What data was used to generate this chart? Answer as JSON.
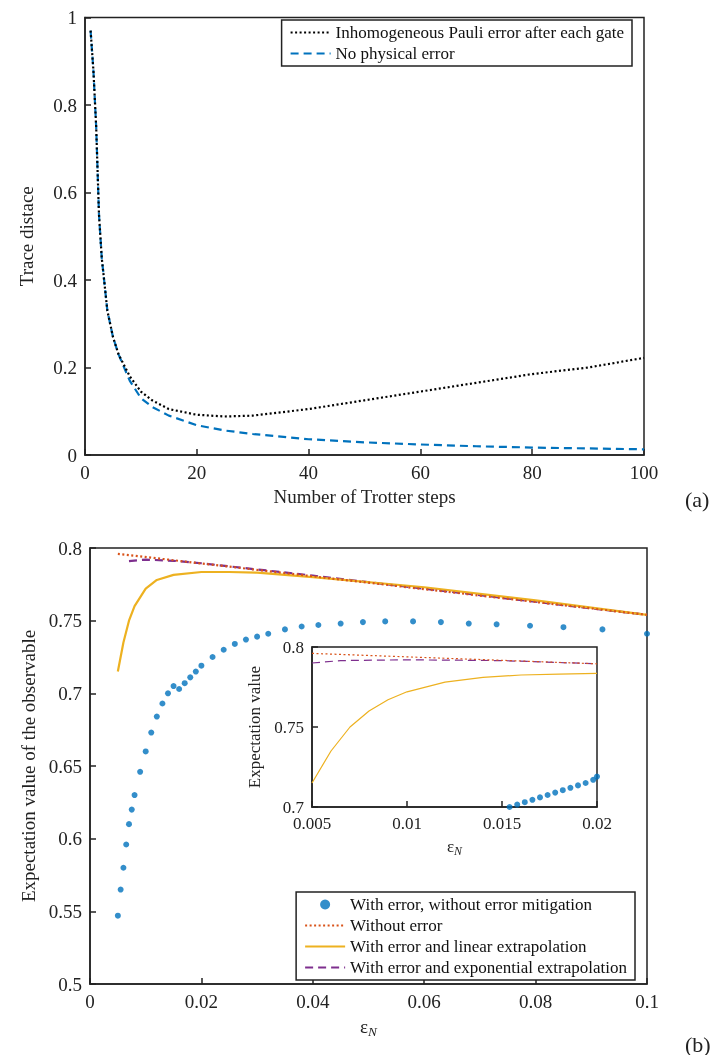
{
  "chart_data": [
    {
      "type": "line",
      "xlabel": "Number of Trotter steps",
      "ylabel": "Trace distace",
      "xlim": [
        0,
        100
      ],
      "ylim": [
        0,
        1
      ],
      "xticks": [
        0,
        20,
        40,
        60,
        80,
        100
      ],
      "yticks": [
        0,
        0.2,
        0.4,
        0.6,
        0.8,
        1
      ],
      "grid": false,
      "legend": "top right",
      "annotations": [
        "(a)"
      ],
      "series": [
        {
          "name": "Inhomogeneous Pauli error after each gate",
          "color": "#000000",
          "line_style": "dotted",
          "marker": "none",
          "x": [
            1,
            1.5,
            2,
            2.5,
            3,
            4,
            5,
            6,
            8,
            10,
            12,
            15,
            20,
            25,
            30,
            40,
            50,
            60,
            70,
            80,
            90,
            100
          ],
          "values": [
            0.97,
            0.88,
            0.75,
            0.55,
            0.45,
            0.33,
            0.27,
            0.23,
            0.18,
            0.145,
            0.125,
            0.105,
            0.092,
            0.088,
            0.09,
            0.105,
            0.125,
            0.145,
            0.165,
            0.185,
            0.2,
            0.222
          ]
        },
        {
          "name": "No physical error",
          "color": "#0072bd",
          "line_style": "dashed",
          "marker": "none",
          "x": [
            1,
            1.5,
            2,
            2.5,
            3,
            4,
            5,
            6,
            8,
            10,
            12,
            15,
            20,
            25,
            30,
            40,
            50,
            60,
            70,
            80,
            90,
            100
          ],
          "values": [
            0.97,
            0.88,
            0.75,
            0.55,
            0.45,
            0.33,
            0.27,
            0.23,
            0.17,
            0.13,
            0.11,
            0.09,
            0.068,
            0.056,
            0.048,
            0.036,
            0.029,
            0.024,
            0.02,
            0.017,
            0.015,
            0.013
          ]
        }
      ]
    },
    {
      "type": "line",
      "xlabel": "ε$_{N}$",
      "ylabel": "Expectation value of the observable",
      "xlim": [
        0,
        0.1
      ],
      "ylim": [
        0.5,
        0.8
      ],
      "xticks": [
        0,
        0.02,
        0.04,
        0.06,
        0.08,
        0.1
      ],
      "yticks": [
        0.5,
        0.55,
        0.6,
        0.65,
        0.7,
        0.75,
        0.8
      ],
      "grid": false,
      "legend": "bottom right",
      "annotations": [
        "(b)"
      ],
      "series": [
        {
          "name": "With error, without error mitigation",
          "type": "scatter",
          "color": "#0072bd",
          "marker": "circle",
          "x": [
            0.005,
            0.0055,
            0.006,
            0.0065,
            0.007,
            0.0075,
            0.008,
            0.009,
            0.01,
            0.011,
            0.012,
            0.013,
            0.014,
            0.015,
            0.016,
            0.017,
            0.018,
            0.019,
            0.02,
            0.022,
            0.024,
            0.026,
            0.028,
            0.03,
            0.032,
            0.035,
            0.038,
            0.041,
            0.045,
            0.049,
            0.053,
            0.058,
            0.063,
            0.068,
            0.073,
            0.079,
            0.085,
            0.092,
            0.1
          ],
          "values": [
            0.547,
            0.565,
            0.58,
            0.596,
            0.61,
            0.62,
            0.63,
            0.646,
            0.66,
            0.673,
            0.684,
            0.693,
            0.7,
            0.705,
            0.703,
            0.707,
            0.711,
            0.715,
            0.719,
            0.725,
            0.73,
            0.734,
            0.737,
            0.739,
            0.741,
            0.744,
            0.746,
            0.747,
            0.748,
            0.749,
            0.7495,
            0.7495,
            0.749,
            0.748,
            0.7475,
            0.7465,
            0.7455,
            0.744,
            0.741
          ]
        },
        {
          "name": "Without error",
          "color": "#d95319",
          "line_style": "dotted",
          "marker": "none",
          "x": [
            0.005,
            0.1
          ],
          "values": [
            0.796,
            0.754
          ]
        },
        {
          "name": "With error and linear extrapolation",
          "color": "#edb120",
          "line_style": "solid",
          "marker": "none",
          "x": [
            0.005,
            0.006,
            0.007,
            0.008,
            0.01,
            0.012,
            0.015,
            0.02,
            0.025,
            0.03,
            0.04,
            0.06,
            0.08,
            0.1
          ],
          "values": [
            0.715,
            0.735,
            0.75,
            0.76,
            0.772,
            0.778,
            0.7815,
            0.7835,
            0.7835,
            0.783,
            0.78,
            0.773,
            0.764,
            0.754
          ]
        },
        {
          "name": "With error and exponential extrapolation",
          "color": "#7e2f8e",
          "line_style": "dashed",
          "marker": "none",
          "x": [
            0.007,
            0.01,
            0.015,
            0.02,
            0.04,
            0.06,
            0.08,
            0.1
          ],
          "values": [
            0.791,
            0.792,
            0.7912,
            0.7895,
            0.781,
            0.772,
            0.763,
            0.754
          ]
        }
      ]
    },
    {
      "type": "line",
      "xlabel": "ε$_{N}$",
      "ylabel": "Expectation value",
      "xlim": [
        0.005,
        0.02
      ],
      "ylim": [
        0.7,
        0.8
      ],
      "xticks": [
        0.005,
        0.01,
        0.015,
        0.02
      ],
      "yticks": [
        0.7,
        0.75,
        0.8
      ],
      "grid": false,
      "series": [
        {
          "type": "scatter",
          "color": "#0072bd",
          "marker": "circle",
          "x": [
            0.0154,
            0.0158,
            0.0162,
            0.0166,
            0.017,
            0.0174,
            0.0178,
            0.0182,
            0.0186,
            0.019,
            0.0194,
            0.0198,
            0.02
          ],
          "values": [
            0.7,
            0.7015,
            0.703,
            0.7045,
            0.706,
            0.7075,
            0.709,
            0.7105,
            0.712,
            0.7135,
            0.715,
            0.717,
            0.719
          ]
        },
        {
          "color": "#d95319",
          "line_style": "dotted",
          "marker": "none",
          "x": [
            0.005,
            0.02
          ],
          "values": [
            0.796,
            0.7895
          ]
        },
        {
          "color": "#edb120",
          "line_style": "solid",
          "marker": "none",
          "x": [
            0.005,
            0.006,
            0.007,
            0.008,
            0.009,
            0.01,
            0.012,
            0.014,
            0.016,
            0.018,
            0.02
          ],
          "values": [
            0.715,
            0.735,
            0.75,
            0.76,
            0.767,
            0.772,
            0.778,
            0.781,
            0.7825,
            0.783,
            0.7835
          ]
        },
        {
          "color": "#7e2f8e",
          "line_style": "dashed",
          "marker": "none",
          "x": [
            0.005,
            0.0065,
            0.01,
            0.015,
            0.02
          ],
          "values": [
            0.79,
            0.7915,
            0.792,
            0.7915,
            0.7895
          ]
        }
      ]
    }
  ]
}
